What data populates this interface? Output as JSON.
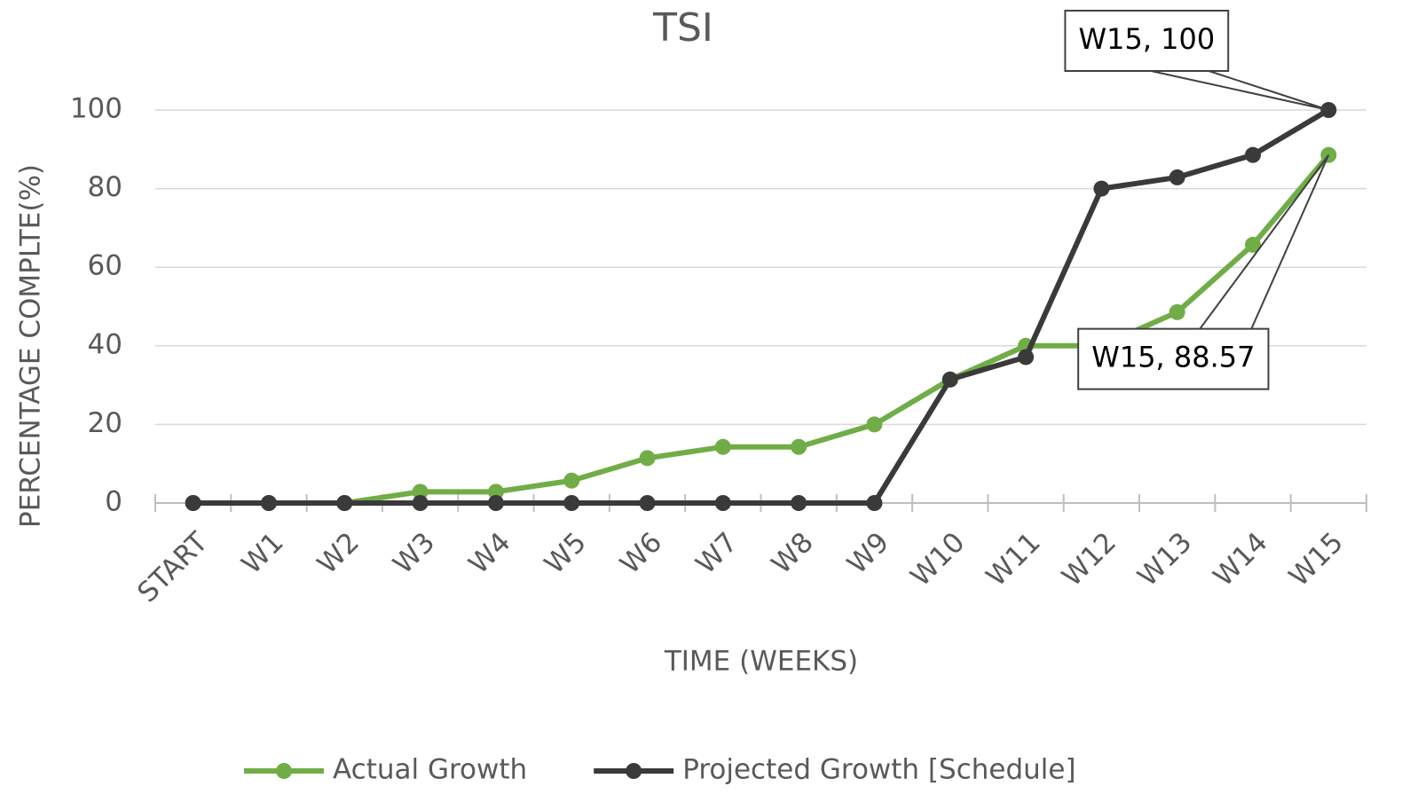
{
  "chart_data": {
    "type": "line",
    "title": "TSI",
    "x_label": "TIME (WEEKS)",
    "y_label": "PERCENTAGE COMPLTE(%)",
    "categories": [
      "START",
      "W1",
      "W2",
      "W3",
      "W4",
      "W5",
      "W6",
      "W7",
      "W8",
      "W9",
      "W10",
      "W11",
      "W12",
      "W13",
      "W14",
      "W15"
    ],
    "series": [
      {
        "name": "Actual Growth",
        "color": "#70ad47",
        "values": [
          0,
          0,
          0,
          2.86,
          2.86,
          5.71,
          11.43,
          14.29,
          14.29,
          20,
          31.43,
          40,
          40,
          48.57,
          65.71,
          88.57
        ],
        "value_labels": [
          null,
          null,
          null,
          null,
          null,
          null,
          null,
          null,
          null,
          null,
          null,
          null,
          null,
          null,
          null,
          "W15, 88.57"
        ]
      },
      {
        "name": "Projected Growth [Schedule]",
        "color": "#3a3a3a",
        "values": [
          0,
          0,
          0,
          0,
          0,
          0,
          0,
          0,
          0,
          0,
          31.43,
          37.14,
          80,
          82.86,
          88.57,
          100
        ],
        "value_labels": [
          null,
          null,
          null,
          null,
          null,
          null,
          null,
          null,
          null,
          null,
          null,
          null,
          null,
          null,
          null,
          "W15, 100"
        ]
      }
    ],
    "ylim": [
      0,
      100
    ],
    "yticks": [
      0,
      20,
      40,
      60,
      80,
      100
    ],
    "grid": true,
    "legend": "bottom"
  }
}
